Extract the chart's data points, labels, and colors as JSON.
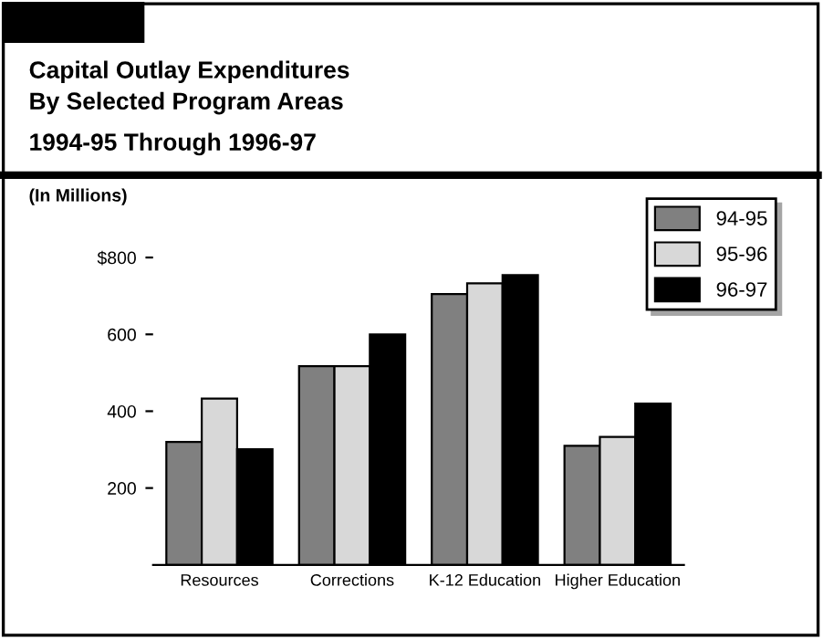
{
  "chart_data": {
    "type": "bar",
    "title": "Capital Outlay Expenditures\nBy Selected Program Areas",
    "subtitle": "1994-95 Through 1996-97",
    "annotations": [
      "(In Millions)"
    ],
    "categories": [
      "Resources",
      "Corrections",
      "K-12 Education",
      "Higher Education"
    ],
    "series": [
      {
        "name": "94-95",
        "color": "#808080",
        "values": [
          320,
          517,
          705,
          310
        ]
      },
      {
        "name": "95-96",
        "color": "#d8d8d8",
        "values": [
          433,
          517,
          733,
          333
        ]
      },
      {
        "name": "96-97",
        "color": "#000000",
        "values": [
          301,
          600,
          754,
          420
        ]
      }
    ],
    "ylim": [
      0,
      800
    ],
    "yticks": [
      200,
      400,
      600,
      {
        "value": 800,
        "label": "$800"
      }
    ],
    "grid": false,
    "legend": "top right"
  }
}
